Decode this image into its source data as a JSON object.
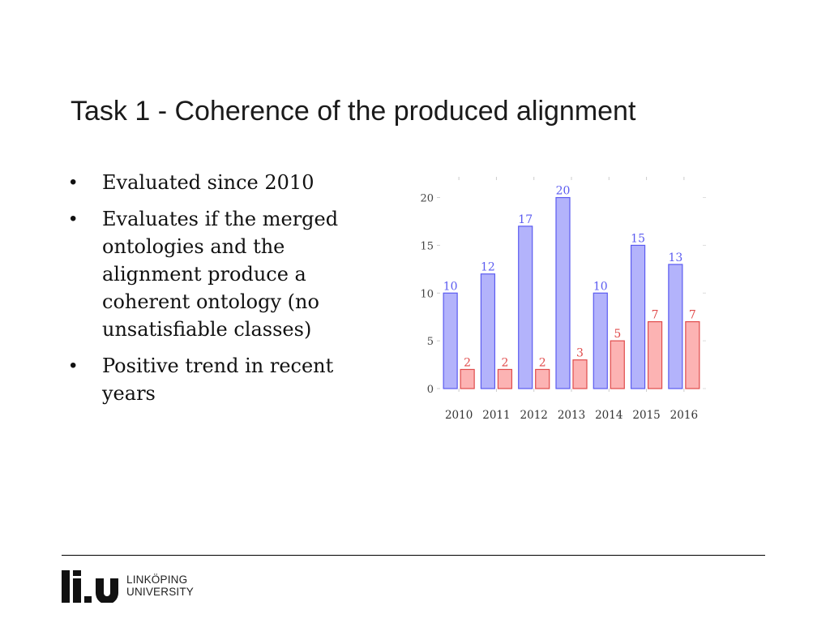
{
  "slide": {
    "title": "Task 1 - Coherence of the produced alignment",
    "bullets": [
      "Evaluated since 2010",
      "Evaluates if the merged ontologies and the alignment produce a coherent ontology (no unsatisfiable classes)",
      "Positive trend in recent years"
    ]
  },
  "footer": {
    "logo_line1": "LINKÖPING",
    "logo_line2": "UNIVERSITY"
  },
  "chart_data": {
    "type": "bar",
    "categories": [
      "2010",
      "2011",
      "2012",
      "2013",
      "2014",
      "2015",
      "2016"
    ],
    "series": [
      {
        "values": [
          10,
          12,
          17,
          20,
          10,
          15,
          13
        ],
        "color": "#5b5bf0",
        "fill": "#b3b3fb"
      },
      {
        "values": [
          2,
          2,
          2,
          3,
          5,
          7,
          7
        ],
        "color": "#e04b4b",
        "fill": "#fcb3b3"
      }
    ],
    "yticks": [
      0,
      5,
      10,
      15,
      20
    ],
    "ylim": [
      0,
      22
    ],
    "grid": false,
    "legend": "none"
  }
}
